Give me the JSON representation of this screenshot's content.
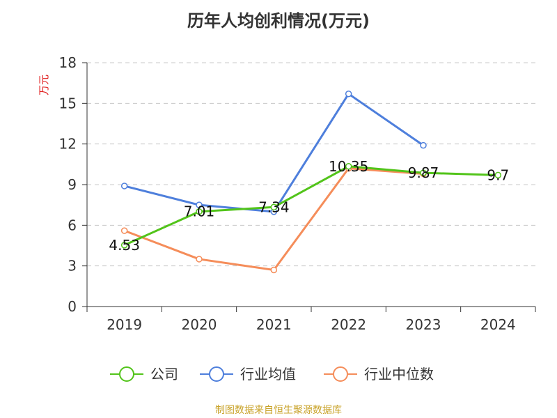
{
  "title": "历年人均创利情况(万元)",
  "footer": "制图数据来自恒生聚源数据库",
  "chart_data": {
    "type": "line",
    "title": "历年人均创利情况(万元)",
    "ylabel": "万元",
    "xlabel": "",
    "categories": [
      "2019",
      "2020",
      "2021",
      "2022",
      "2023",
      "2024"
    ],
    "ylim": [
      0,
      18
    ],
    "yticks": [
      0,
      3,
      6,
      9,
      12,
      15,
      18
    ],
    "grid": true,
    "legend_position": "bottom",
    "series": [
      {
        "name": "公司",
        "color": "#52c41a",
        "values": [
          4.53,
          7.01,
          7.34,
          10.35,
          9.87,
          9.7
        ],
        "labels": [
          "4.53",
          "7.01",
          "7.34",
          "10.35",
          "9.87",
          "9.7"
        ]
      },
      {
        "name": "行业均值",
        "color": "#4e7fdc",
        "values": [
          8.9,
          7.5,
          7.0,
          15.7,
          11.9,
          null
        ]
      },
      {
        "name": "行业中位数",
        "color": "#f58d5a",
        "values": [
          5.6,
          3.5,
          2.7,
          10.2,
          9.8,
          null
        ]
      }
    ]
  }
}
